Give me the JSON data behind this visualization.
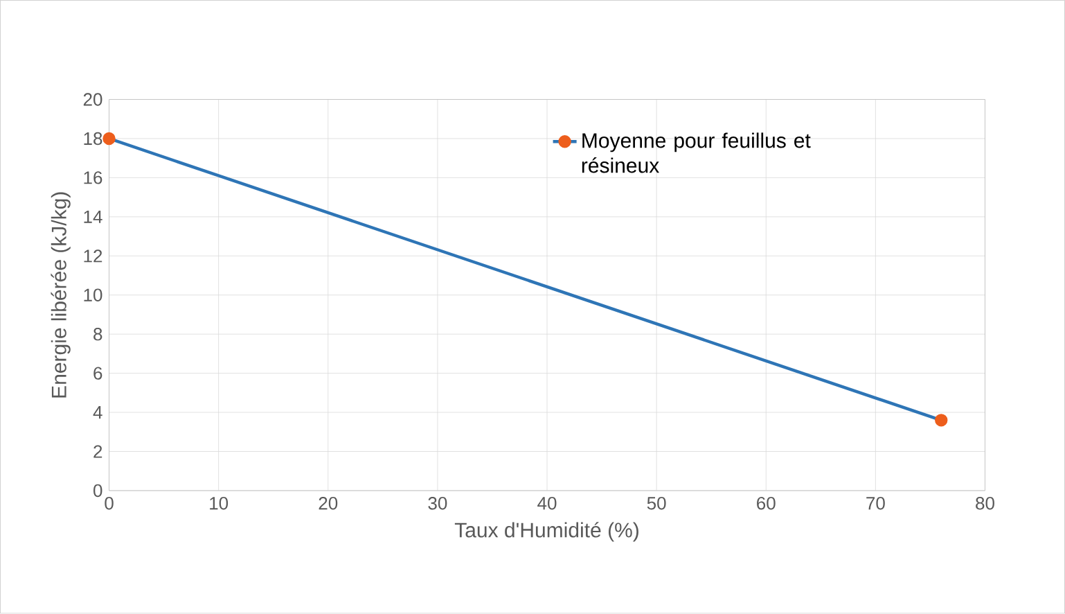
{
  "chart_data": {
    "type": "line",
    "xlabel": "Taux d'Humidité  (%)",
    "ylabel": "Energie libérée  (kJ/kg)",
    "x": [
      0,
      76
    ],
    "series": [
      {
        "name": "Moyenne pour feuillus et résineux",
        "color": "#2e75b6",
        "colors": [
          "#ed5e1c",
          "#ed5e1c"
        ],
        "values": [
          18,
          3.6
        ]
      }
    ],
    "xlim": [
      0,
      80
    ],
    "ylim": [
      0,
      20
    ],
    "xticks": [
      0,
      10,
      20,
      30,
      40,
      50,
      60,
      70,
      80
    ],
    "yticks": [
      0,
      2,
      4,
      6,
      8,
      10,
      12,
      14,
      16,
      18,
      20
    ],
    "grid": true,
    "legend": "top right",
    "marker": "circle",
    "line_style": "solid"
  }
}
